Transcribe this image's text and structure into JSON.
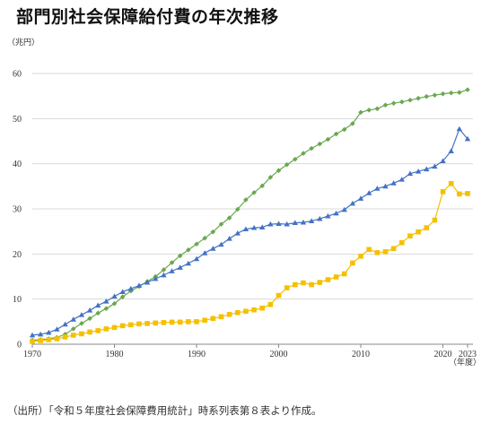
{
  "title": "部門別社会保障給付費の年次推移",
  "y_unit": "（兆円）",
  "x_unit": "（年度）",
  "source": "（出所）「令和５年度社会保障費用統計」時系列表第８表より作成。",
  "colors": {
    "green": "#6aa84f",
    "blue": "#4472c4",
    "yellow": "#f5c000",
    "axis": "#888888",
    "grid": "#d9d9d9"
  },
  "chart_data": {
    "type": "line",
    "title": "部門別社会保障給付費の年次推移",
    "xlabel": "（年度）",
    "ylabel": "（兆円）",
    "xlim": [
      1970,
      2023
    ],
    "ylim": [
      0,
      60
    ],
    "grid": true,
    "x_ticks": [
      "1970",
      "1980",
      "1990",
      "2000",
      "2010",
      "2020",
      "2023"
    ],
    "y_ticks": [
      "0",
      "10",
      "20",
      "30",
      "40",
      "50",
      "60"
    ],
    "x": [
      1970,
      1971,
      1972,
      1973,
      1974,
      1975,
      1976,
      1977,
      1978,
      1979,
      1980,
      1981,
      1982,
      1983,
      1984,
      1985,
      1986,
      1987,
      1988,
      1989,
      1990,
      1991,
      1992,
      1993,
      1994,
      1995,
      1996,
      1997,
      1998,
      1999,
      2000,
      2001,
      2002,
      2003,
      2004,
      2005,
      2006,
      2007,
      2008,
      2009,
      2010,
      2011,
      2012,
      2013,
      2014,
      2015,
      2016,
      2017,
      2018,
      2019,
      2020,
      2021,
      2022,
      2023
    ],
    "series": [
      {
        "marker": "diamond",
        "color": "#6aa84f",
        "values": [
          0.9,
          1.0,
          1.2,
          1.5,
          2.2,
          3.4,
          4.6,
          5.7,
          6.9,
          7.9,
          9.0,
          10.5,
          11.8,
          12.8,
          13.9,
          15.0,
          16.5,
          18.1,
          19.6,
          20.9,
          22.2,
          23.5,
          24.9,
          26.6,
          28.0,
          29.9,
          32.0,
          33.6,
          35.1,
          37.0,
          38.5,
          39.8,
          41.0,
          42.3,
          43.4,
          44.4,
          45.4,
          46.6,
          47.6,
          48.9,
          51.4,
          51.9,
          52.2,
          53.0,
          53.4,
          53.7,
          54.1,
          54.5,
          54.9,
          55.2,
          55.5,
          55.7,
          55.8,
          56.4
        ]
      },
      {
        "marker": "triangle",
        "color": "#4472c4",
        "values": [
          2.0,
          2.2,
          2.6,
          3.3,
          4.4,
          5.5,
          6.5,
          7.5,
          8.6,
          9.5,
          10.6,
          11.6,
          12.3,
          13.0,
          13.7,
          14.5,
          15.3,
          16.2,
          17.0,
          17.9,
          18.9,
          20.2,
          21.2,
          22.1,
          23.4,
          24.6,
          25.5,
          25.8,
          25.9,
          26.6,
          26.7,
          26.6,
          26.9,
          27.0,
          27.3,
          27.8,
          28.4,
          29.0,
          29.8,
          31.2,
          32.3,
          33.5,
          34.5,
          35.0,
          35.7,
          36.5,
          37.8,
          38.3,
          38.8,
          39.4,
          40.6,
          42.8,
          47.7,
          45.5
        ]
      },
      {
        "marker": "square",
        "color": "#f5c000",
        "values": [
          0.6,
          0.8,
          1.0,
          1.2,
          1.6,
          2.0,
          2.3,
          2.7,
          3.0,
          3.4,
          3.7,
          4.1,
          4.3,
          4.5,
          4.6,
          4.7,
          4.8,
          4.9,
          4.9,
          5.0,
          5.0,
          5.3,
          5.7,
          6.1,
          6.6,
          7.0,
          7.3,
          7.6,
          8.0,
          8.8,
          10.8,
          12.5,
          13.2,
          13.6,
          13.2,
          13.7,
          14.3,
          14.9,
          15.6,
          18.0,
          19.5,
          21.0,
          20.3,
          20.5,
          21.2,
          22.5,
          24.0,
          24.9,
          25.8,
          27.5,
          33.8,
          35.6,
          33.3,
          33.4
        ]
      }
    ]
  }
}
